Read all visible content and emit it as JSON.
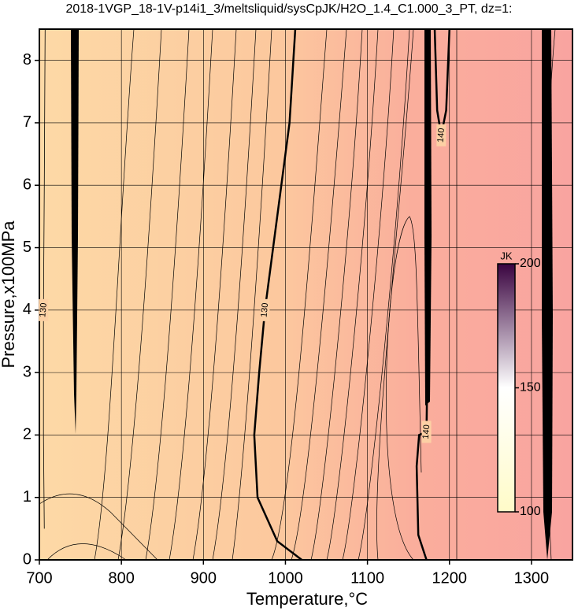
{
  "chart_data": {
    "type": "contour",
    "title": "2018-1VGP_18-1V-p14i1_3/meltsliquid/sysCpJK/H2O_1.4_C1.000_3_PT, dz=1:",
    "x_label": "Temperature,°C",
    "y_label": "Pressure,x100MPa",
    "xlim": [
      700,
      1350
    ],
    "ylim": [
      0,
      8.5
    ],
    "xticks": [
      700,
      800,
      900,
      1000,
      1100,
      1200,
      1300
    ],
    "yticks": [
      0,
      1,
      2,
      3,
      4,
      5,
      6,
      7,
      8
    ],
    "grid": true,
    "contours": [
      {
        "level": 130,
        "bold": false,
        "x": [
          706,
          705,
          705,
          706,
          707
        ],
        "y": [
          0.5,
          2,
          4,
          6,
          8.5
        ]
      },
      {
        "level": 130,
        "bold": true,
        "x": [
          1020,
          990,
          966,
          962,
          968,
          975,
          985,
          995,
          1005,
          1012
        ],
        "y": [
          0,
          0.3,
          1,
          2,
          3,
          4,
          5,
          6,
          7,
          8.5
        ]
      },
      {
        "level": 140,
        "bold": true,
        "x": [
          1172,
          1162,
          1160,
          1163,
          1172,
          1173,
          1173,
          1172
        ],
        "y": [
          0,
          0.4,
          1.5,
          2,
          2.05,
          3,
          5,
          8.5
        ]
      },
      {
        "level": 140,
        "bold": true,
        "x": [
          1182,
          1185,
          1190,
          1196,
          1200
        ],
        "y": [
          8.5,
          7.2,
          6.8,
          7.2,
          8.5
        ]
      }
    ],
    "colorbar": {
      "label": "JK",
      "lim": [
        100,
        200
      ],
      "ticks": [
        100,
        150,
        200
      ],
      "colors": [
        "#fffbc8",
        "#ffffff",
        "#3a0440"
      ]
    }
  }
}
